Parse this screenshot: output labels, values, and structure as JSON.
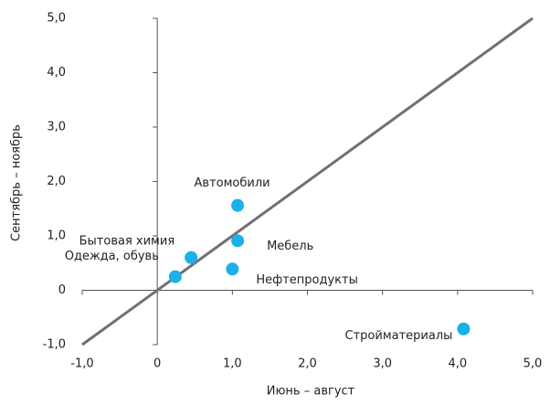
{
  "chart_data": {
    "type": "scatter",
    "xlabel": "Июнь – август",
    "ylabel": "Сентябрь – ноябрь",
    "labels": [
      "Автомобили",
      "Мебель",
      "Бытовая химия",
      "Одежда, обувь",
      "Нефтепродукты",
      "Стройматериалы"
    ],
    "x": [
      1.07,
      1.07,
      0.45,
      0.24,
      1.0,
      4.08
    ],
    "values": [
      1.56,
      0.91,
      0.6,
      0.25,
      0.39,
      -0.71
    ],
    "color": "#1ab0e8",
    "xlim": [
      -1,
      5
    ],
    "ylim": [
      -1,
      5
    ],
    "xticks": [
      {
        "value": -1,
        "label": "-1,0"
      },
      0,
      {
        "value": 1,
        "label": "1,0"
      },
      {
        "value": 2,
        "label": "2,0"
      },
      {
        "value": 3,
        "label": "3,0"
      },
      {
        "value": 4,
        "label": "4,0"
      },
      {
        "value": 5,
        "label": "5,0"
      }
    ],
    "yticks": [
      {
        "value": -1,
        "label": "-1,0"
      },
      0,
      {
        "value": 1,
        "label": "1,0"
      },
      {
        "value": 2,
        "label": "2,0"
      },
      {
        "value": 3,
        "label": "3,0"
      },
      {
        "value": 4,
        "label": "4,0"
      },
      {
        "value": 5,
        "label": "5,0"
      }
    ],
    "grid": false
  }
}
